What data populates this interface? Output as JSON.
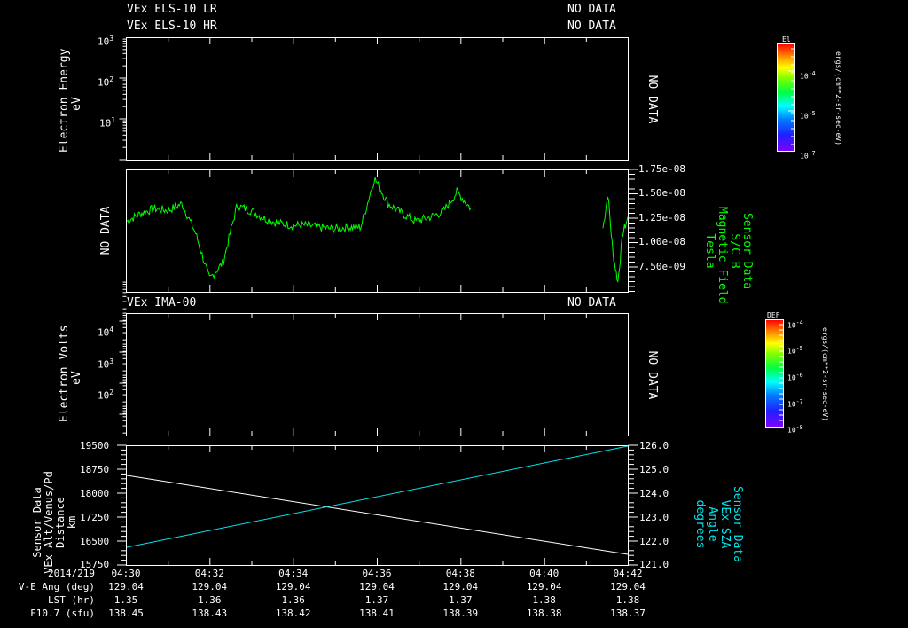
{
  "chart_data": [
    {
      "type": "heatmap",
      "panel": 1,
      "titles": [
        "VEx ELS-10 LR",
        "VEx ELS-10 HR"
      ],
      "status": [
        "NO DATA",
        "NO DATA"
      ],
      "side_status": "NO DATA",
      "ylabel": [
        "Electron Energy",
        "eV"
      ],
      "yscale": "log",
      "yticks": [
        "10^1",
        "10^2",
        "10^3"
      ],
      "colorbar": {
        "title": "El",
        "ticks": [
          "10^-7",
          "10^-5",
          "10^-4"
        ],
        "label": "ergs/(cm**2-sr-sec-eV)",
        "colormap": "rainbow"
      }
    },
    {
      "type": "line",
      "panel": 2,
      "left_status": "NO DATA",
      "title": "Sensor Data S/C B Magnetic Field",
      "ylabel_right": [
        "Sensor Data",
        "S/C B",
        "Magnetic Field",
        "Tesla"
      ],
      "yticks": [
        "7.50e-09",
        "1.00e-08",
        "1.25e-08",
        "1.50e-08",
        "1.75e-08"
      ],
      "ylim": [
        5e-09,
        1.75e-08
      ],
      "series": [
        {
          "name": "S/C B Magnetic Field",
          "color": "#00ff00",
          "segments": [
            {
              "x_start": "04:30",
              "x_end": "04:38.1",
              "approx_values": [
                1.22e-08,
                1.3e-08,
                1.35e-08,
                1.33e-08,
                1.4e-08,
                1.1e-08,
                6.3e-09,
                8e-09,
                1.38e-08,
                1.33e-08,
                1.25e-08,
                1.2e-08,
                1.18e-08,
                1.18e-08,
                1.16e-08,
                1.14e-08,
                1.16e-08,
                1.16e-08,
                1.66e-08,
                1.4e-08,
                1.3e-08,
                1.22e-08,
                1.26e-08,
                1.32e-08,
                1.52e-08,
                1.35e-08
              ]
            },
            {
              "x_start": "04:41.7",
              "x_end": "04:42",
              "approx_values": [
                1.15e-08,
                1.5e-08,
                9e-09,
                6e-09,
                1.1e-08,
                1.25e-08
              ]
            }
          ]
        }
      ]
    },
    {
      "type": "heatmap",
      "panel": 3,
      "title": "VEx IMA-00",
      "status": "NO DATA",
      "side_status": "NO DATA",
      "ylabel": [
        "Electron Volts",
        "eV"
      ],
      "yscale": "log",
      "yticks": [
        "10^2",
        "10^3",
        "10^4"
      ],
      "colorbar": {
        "title": "DEF",
        "ticks": [
          "10^-8",
          "10^-7",
          "10^-6",
          "10^-5",
          "10^-4"
        ],
        "label": "ergs/(cm**2-sr-sec-eV)",
        "colormap": "rainbow"
      }
    },
    {
      "type": "line",
      "panel": 4,
      "ylabel_left": [
        "Sensor Data",
        "VEx Alt/Venus/Pd",
        "Distance",
        "km"
      ],
      "ylabel_right": [
        "Sensor Data",
        "VEx SZA",
        "Angle",
        "degrees"
      ],
      "yticks_left": [
        "15750",
        "16500",
        "17250",
        "18000",
        "18750",
        "19500"
      ],
      "ylim_left": [
        15750,
        19500
      ],
      "yticks_right": [
        "121.0",
        "122.0",
        "123.0",
        "124.0",
        "125.0",
        "126.0"
      ],
      "ylim_right": [
        121.0,
        126.0
      ],
      "x": [
        "04:30",
        "04:42"
      ],
      "series": [
        {
          "name": "VEx Alt/Venus/Pd Distance (km)",
          "color": "#ffffff",
          "axis": "left",
          "values": [
            18580,
            16040
          ]
        },
        {
          "name": "VEx SZA Angle (degrees)",
          "color": "#00e5ee",
          "axis": "right",
          "values": [
            121.7,
            125.95
          ]
        }
      ]
    }
  ],
  "x_axis": {
    "date": "2014/219",
    "ticks": [
      "04:30",
      "04:32",
      "04:34",
      "04:36",
      "04:38",
      "04:40",
      "04:42"
    ],
    "rows": [
      {
        "label": "V-E Ang (deg)",
        "values": [
          "129.04",
          "129.04",
          "129.04",
          "129.04",
          "129.04",
          "129.04",
          "129.04"
        ]
      },
      {
        "label": "LST (hr)",
        "values": [
          "1.35",
          "1.36",
          "1.36",
          "1.37",
          "1.37",
          "1.38",
          "1.38"
        ]
      },
      {
        "label": "F10.7 (sfu)",
        "values": [
          "138.45",
          "138.43",
          "138.42",
          "138.41",
          "138.39",
          "138.38",
          "138.37"
        ]
      }
    ]
  },
  "labels": {
    "p1_title1": "VEx ELS-10 LR",
    "p1_title2": "VEx ELS-10 HR",
    "p1_status1": "NO DATA",
    "p1_status2": "NO DATA",
    "p1_side": "NO DATA",
    "p1_ylabel1": "Electron Energy",
    "p1_ylabel2": "eV",
    "p1_yt3": "10",
    "p1_yt3e": "3",
    "p1_yt2": "10",
    "p1_yt2e": "2",
    "p1_yt1": "10",
    "p1_yt1e": "1",
    "cb1_title": "El",
    "cb1_t1": "10",
    "cb1_t1e": "-4",
    "cb1_t2": "10",
    "cb1_t2e": "-5",
    "cb1_t3": "10",
    "cb1_t3e": "-7",
    "cb_units": "ergs/(cm**2-sr-sec-eV)",
    "p2_left": "NO DATA",
    "p2_yt1": "1.75e-08",
    "p2_yt2": "1.50e-08",
    "p2_yt3": "1.25e-08",
    "p2_yt4": "1.00e-08",
    "p2_yt5": "7.50e-09",
    "p2_r1": "Sensor Data",
    "p2_r2": "S/C B",
    "p2_r3": "Magnetic Field",
    "p2_r4": "Tesla",
    "p3_title": "VEx IMA-00",
    "p3_status": "NO DATA",
    "p3_side": "NO DATA",
    "p3_ylabel1": "Electron Volts",
    "p3_ylabel2": "eV",
    "p3_yt4": "10",
    "p3_yt4e": "4",
    "p3_yt3": "10",
    "p3_yt3e": "3",
    "p3_yt2": "10",
    "p3_yt2e": "2",
    "cb2_title": "DEF",
    "cb2_t1": "10",
    "cb2_t1e": "-4",
    "cb2_t2": "10",
    "cb2_t2e": "-5",
    "cb2_t3": "10",
    "cb2_t3e": "-6",
    "cb2_t4": "10",
    "cb2_t4e": "-7",
    "cb2_t5": "10",
    "cb2_t5e": "-8",
    "p4_l1": "Sensor Data",
    "p4_l2": "VEx Alt/Venus/Pd",
    "p4_l3": "Distance",
    "p4_l4": "km",
    "p4_r1": "Sensor Data",
    "p4_r2": "VEx SZA",
    "p4_r3": "Angle",
    "p4_r4": "degrees",
    "p4_yl1": "19500",
    "p4_yl2": "18750",
    "p4_yl3": "18000",
    "p4_yl4": "17250",
    "p4_yl5": "16500",
    "p4_yl6": "15750",
    "p4_yr1": "126.0",
    "p4_yr2": "125.0",
    "p4_yr3": "124.0",
    "p4_yr4": "123.0",
    "p4_yr5": "122.0",
    "p4_yr6": "121.0"
  },
  "colors": {
    "background": "#000000",
    "axes": "#ffffff",
    "bfield": "#00ff00",
    "sza": "#00e5ee",
    "alt": "#ffffff"
  }
}
